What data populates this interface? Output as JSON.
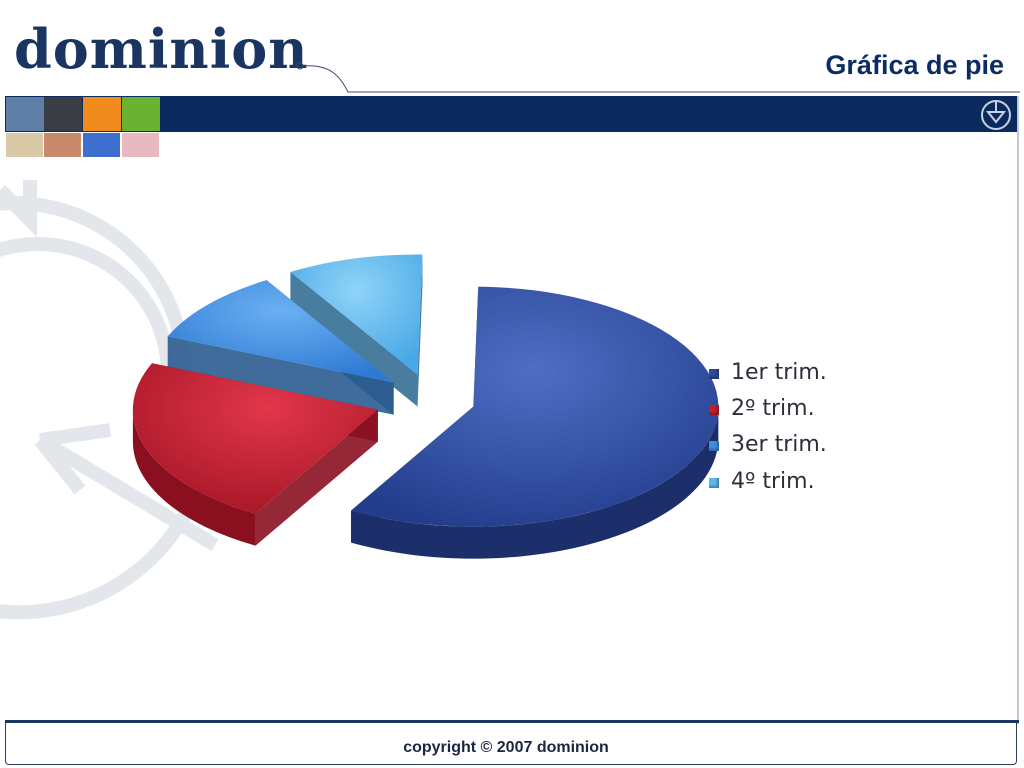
{
  "logo": {
    "text": "dominion"
  },
  "header": {
    "title": "Gráfica de pie"
  },
  "swatch_colors": [
    "#5f7fa6",
    "#3a3d44",
    "#f08c1e",
    "#69b232"
  ],
  "thumb_colors": [
    "#d9c9a6",
    "#c98a6c",
    "#3d6fd0",
    "#e9b9c2"
  ],
  "footer": {
    "copyright": "copyright © 2007 dominion"
  },
  "chart_data": {
    "type": "pie",
    "style": "3d-exploded",
    "title": "",
    "legend_position": "right",
    "series": [
      {
        "name": "1er trim.",
        "value": 58,
        "color": "#2e4a9e"
      },
      {
        "name": "2º trim.",
        "value": 23,
        "color": "#c21e2e"
      },
      {
        "name": "3er trim.",
        "value": 10,
        "color": "#3f8fe0"
      },
      {
        "name": "4º trim.",
        "value": 9,
        "color": "#5bb8ef"
      }
    ]
  }
}
